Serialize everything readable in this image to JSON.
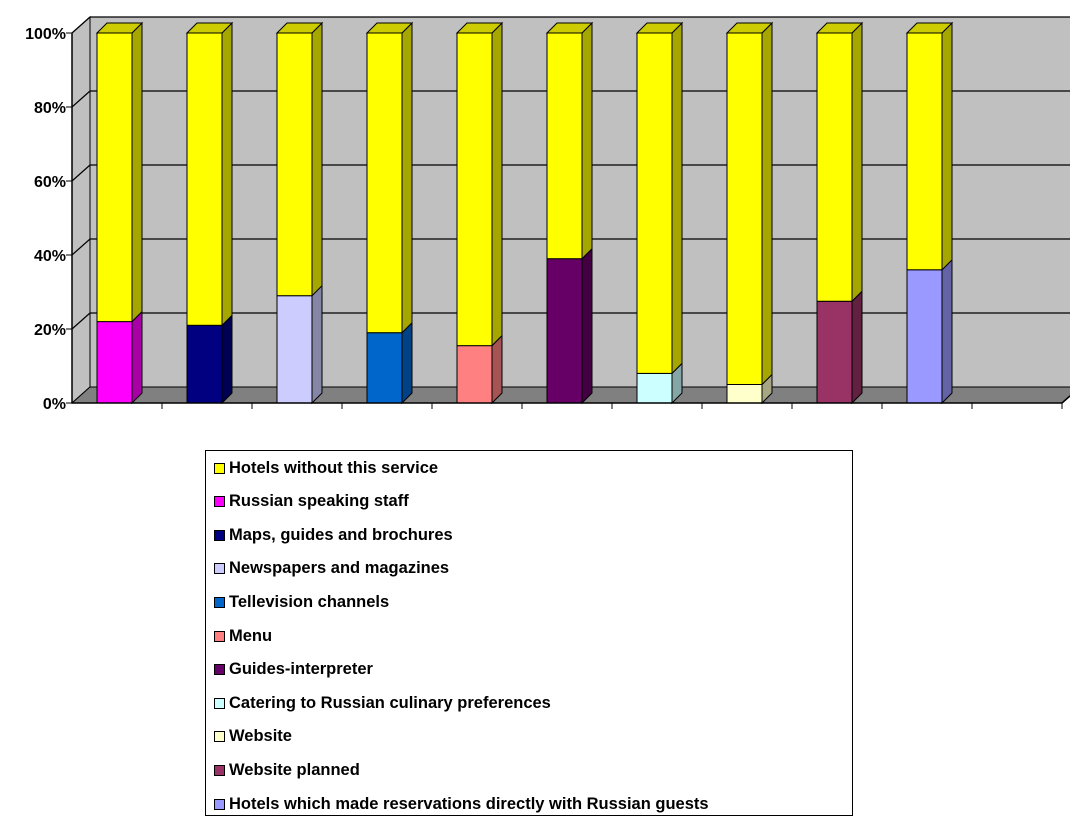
{
  "chart_data": {
    "type": "bar",
    "stacked": true,
    "percent_stacked": true,
    "three_d": true,
    "ylim": [
      0,
      100
    ],
    "yticks": [
      "0%",
      "20%",
      "40%",
      "60%",
      "80%",
      "100%"
    ],
    "categories": [
      "",
      "",
      "",
      "",
      "",
      "",
      "",
      "",
      "",
      ""
    ],
    "series": [
      {
        "name": "Russian speaking staff",
        "color": "#ff00ff",
        "values": [
          22,
          0,
          0,
          0,
          0,
          0,
          0,
          0,
          0,
          0
        ]
      },
      {
        "name": "Maps, guides and brochures",
        "color": "#000080",
        "values": [
          0,
          21,
          0,
          0,
          0,
          0,
          0,
          0,
          0,
          0
        ]
      },
      {
        "name": "Newspapers and magazines",
        "color": "#ccccff",
        "values": [
          0,
          0,
          29,
          0,
          0,
          0,
          0,
          0,
          0,
          0
        ]
      },
      {
        "name": "Tellevision channels",
        "color": "#0066cc",
        "values": [
          0,
          0,
          0,
          19,
          0,
          0,
          0,
          0,
          0,
          0
        ]
      },
      {
        "name": "Menu",
        "color": "#ff8080",
        "values": [
          0,
          0,
          0,
          0,
          15.5,
          0,
          0,
          0,
          0,
          0
        ]
      },
      {
        "name": "Guides-interpreter",
        "color": "#660066",
        "values": [
          0,
          0,
          0,
          0,
          0,
          39,
          0,
          0,
          0,
          0
        ]
      },
      {
        "name": "Catering to Russian culinary preferences",
        "color": "#ccffff",
        "values": [
          0,
          0,
          0,
          0,
          0,
          0,
          8,
          0,
          0,
          0
        ]
      },
      {
        "name": "Website",
        "color": "#ffffcc",
        "values": [
          0,
          0,
          0,
          0,
          0,
          0,
          0,
          5,
          0,
          0
        ]
      },
      {
        "name": "Website planned",
        "color": "#993366",
        "values": [
          0,
          0,
          0,
          0,
          0,
          0,
          0,
          0,
          27.5,
          0
        ]
      },
      {
        "name": "Hotels which made reservations directly with Russian guests",
        "color": "#9999ff",
        "values": [
          0,
          0,
          0,
          0,
          0,
          0,
          0,
          0,
          0,
          36
        ]
      },
      {
        "name": "Hotels without this service",
        "color": "#ffff00",
        "values": [
          78,
          79,
          71,
          81,
          84.5,
          61,
          92,
          95,
          72.5,
          64
        ]
      }
    ],
    "legend": {
      "placement": "bottom",
      "order": [
        10,
        0,
        1,
        2,
        3,
        4,
        5,
        6,
        7,
        8,
        9
      ]
    },
    "grid": true,
    "wall_color": "#c0c0c0",
    "floor_color": "#808080"
  }
}
